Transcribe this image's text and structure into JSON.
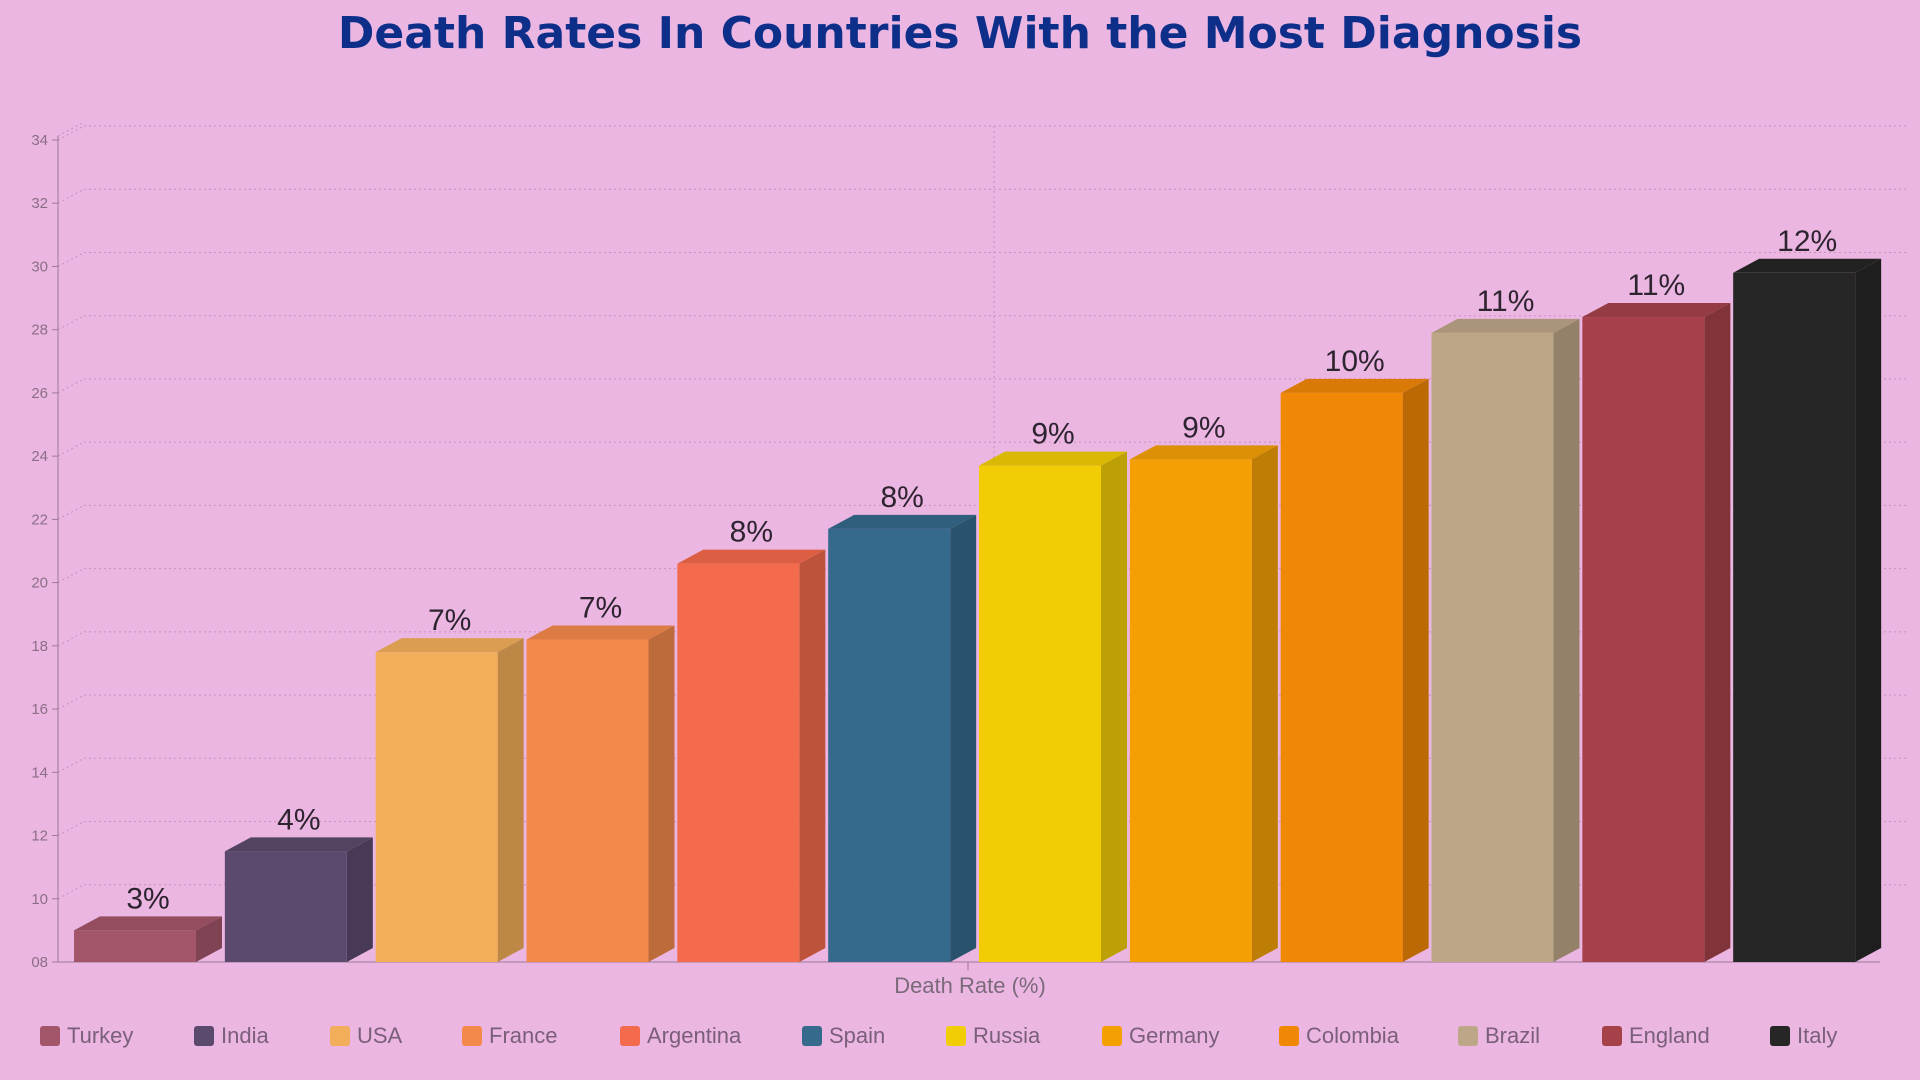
{
  "chart_data": {
    "type": "bar",
    "title": "Death Rates In Countries With the Most Diagnosis",
    "xlabel": "Death Rate (%)",
    "ylabel": "",
    "ylim": [
      8,
      34
    ],
    "yticks": [
      "08",
      "10",
      "12",
      "14",
      "16",
      "18",
      "20",
      "22",
      "24",
      "26",
      "28",
      "30",
      "32",
      "34"
    ],
    "grid": true,
    "legend_position": "bottom",
    "categories": [
      "Turkey",
      "India",
      "USA",
      "France",
      "Argentina",
      "Spain",
      "Russia",
      "Germany",
      "Colombia",
      "Brazil",
      "England",
      "Italy"
    ],
    "values": [
      9,
      11.5,
      17.8,
      18.2,
      20.6,
      21.7,
      23.7,
      23.9,
      26,
      27.9,
      28.4,
      29.8
    ],
    "labels": [
      "3%",
      "4%",
      "7%",
      "7%",
      "8%",
      "8%",
      "9%",
      "9%",
      "10%",
      "11%",
      "11%",
      "12%"
    ],
    "colors": [
      "#a3566a",
      "#5c4a6e",
      "#f2ae5a",
      "#f4894c",
      "#f46a4c",
      "#356a8c",
      "#f2cd05",
      "#f4a005",
      "#f08705",
      "#bda688",
      "#a6414a",
      "#262626"
    ]
  }
}
